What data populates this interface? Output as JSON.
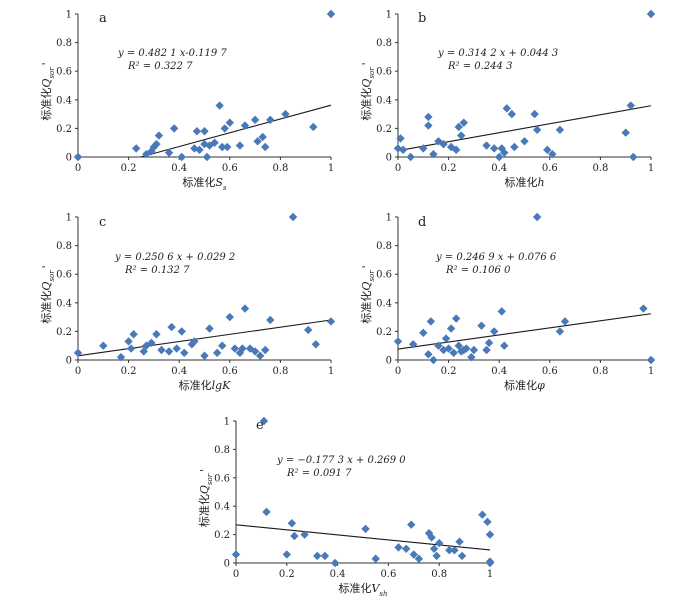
{
  "chart_data": [
    {
      "type": "scatter",
      "panel_label": "a",
      "xlabel": "标准化S_s",
      "ylabel": "标准化Q_sor'",
      "equation": "y = 0.482 1 x-0.119 7",
      "r2": "R² = 0.322 7",
      "xlim": [
        0,
        1
      ],
      "ylim": [
        0,
        1
      ],
      "xticks": [
        "0",
        "0.2",
        "0.4",
        "0.6",
        "0.8",
        "1"
      ],
      "yticks": [
        "0",
        "0.2",
        "0.4",
        "0.6",
        "0.8",
        "1"
      ],
      "trend": {
        "slope": 0.4821,
        "intercept": -0.1197
      },
      "x": [
        0,
        0.23,
        0.27,
        0.29,
        0.3,
        0.31,
        0.32,
        0.36,
        0.38,
        0.41,
        0.46,
        0.47,
        0.48,
        0.5,
        0.5,
        0.51,
        0.52,
        0.54,
        0.56,
        0.57,
        0.58,
        0.59,
        0.6,
        0.64,
        0.66,
        0.7,
        0.71,
        0.73,
        0.74,
        0.76,
        0.82,
        0.93,
        1.0
      ],
      "y": [
        0,
        0.06,
        0.02,
        0.04,
        0.07,
        0.09,
        0.15,
        0.03,
        0.2,
        0.0,
        0.06,
        0.18,
        0.05,
        0.09,
        0.18,
        0.0,
        0.08,
        0.1,
        0.36,
        0.07,
        0.2,
        0.07,
        0.24,
        0.08,
        0.22,
        0.26,
        0.11,
        0.14,
        0.07,
        0.26,
        0.3,
        0.21,
        1.0
      ]
    },
    {
      "type": "scatter",
      "panel_label": "b",
      "xlabel": "标准化h",
      "ylabel": "标准化Q_sor'",
      "equation": "y = 0.314 2 x + 0.044 3",
      "r2": "R² = 0.244 3",
      "xlim": [
        0,
        1
      ],
      "ylim": [
        0,
        1
      ],
      "xticks": [
        "0",
        "0.2",
        "0.4",
        "0.6",
        "0.8",
        "1"
      ],
      "yticks": [
        "0",
        "0.2",
        "0.4",
        "0.6",
        "0.8",
        "1"
      ],
      "trend": {
        "slope": 0.3142,
        "intercept": 0.0443
      },
      "x": [
        0,
        0.01,
        0.02,
        0.05,
        0.1,
        0.12,
        0.12,
        0.14,
        0.16,
        0.18,
        0.21,
        0.23,
        0.24,
        0.25,
        0.26,
        0.35,
        0.38,
        0.4,
        0.41,
        0.42,
        0.43,
        0.45,
        0.46,
        0.5,
        0.54,
        0.55,
        0.59,
        0.61,
        0.64,
        0.9,
        0.92,
        0.93,
        1.0
      ],
      "y": [
        0.06,
        0.13,
        0.05,
        0.0,
        0.06,
        0.28,
        0.22,
        0.02,
        0.11,
        0.09,
        0.07,
        0.05,
        0.21,
        0.15,
        0.24,
        0.08,
        0.06,
        0.0,
        0.06,
        0.03,
        0.34,
        0.3,
        0.07,
        0.11,
        0.3,
        0.19,
        0.05,
        0.02,
        0.19,
        0.17,
        0.36,
        0.0,
        1.0
      ]
    },
    {
      "type": "scatter",
      "panel_label": "c",
      "xlabel": "标准化lgK",
      "ylabel": "标准化Q_sor'",
      "equation": "y = 0.250 6 x + 0.029 2",
      "r2": "R² = 0.132 7",
      "xlim": [
        0,
        1
      ],
      "ylim": [
        0,
        1
      ],
      "xticks": [
        "0",
        "0.2",
        "0.4",
        "0.6",
        "0.8",
        "1"
      ],
      "yticks": [
        "0",
        "0.2",
        "0.4",
        "0.6",
        "0.8",
        "1"
      ],
      "trend": {
        "slope": 0.2506,
        "intercept": 0.0292
      },
      "x": [
        0,
        0.1,
        0.17,
        0.2,
        0.21,
        0.22,
        0.26,
        0.27,
        0.29,
        0.31,
        0.33,
        0.36,
        0.37,
        0.39,
        0.41,
        0.42,
        0.45,
        0.46,
        0.5,
        0.52,
        0.55,
        0.57,
        0.6,
        0.62,
        0.64,
        0.65,
        0.66,
        0.68,
        0.7,
        0.72,
        0.74,
        0.76,
        0.85,
        0.91,
        0.94,
        1.0
      ],
      "y": [
        0.05,
        0.1,
        0.02,
        0.13,
        0.08,
        0.18,
        0.06,
        0.1,
        0.12,
        0.18,
        0.07,
        0.06,
        0.23,
        0.08,
        0.2,
        0.05,
        0.11,
        0.13,
        0.03,
        0.22,
        0.05,
        0.1,
        0.3,
        0.08,
        0.05,
        0.08,
        0.36,
        0.08,
        0.06,
        0.03,
        0.07,
        0.28,
        1.0,
        0.21,
        0.11,
        0.27
      ]
    },
    {
      "type": "scatter",
      "panel_label": "d",
      "xlabel": "标准化φ",
      "ylabel": "标准化Q_sor'",
      "equation": "y = 0.246 9 x + 0.076 6",
      "r2": "R² = 0.106 0",
      "xlim": [
        0,
        1
      ],
      "ylim": [
        0,
        1
      ],
      "xticks": [
        "0",
        "0.2",
        "0.4",
        "0.6",
        "0.8",
        "1"
      ],
      "yticks": [
        "0",
        "0.2",
        "0.4",
        "0.6",
        "0.8",
        "1"
      ],
      "trend": {
        "slope": 0.2469,
        "intercept": 0.0766
      },
      "x": [
        0,
        0.06,
        0.1,
        0.12,
        0.13,
        0.14,
        0.16,
        0.18,
        0.19,
        0.2,
        0.21,
        0.22,
        0.23,
        0.24,
        0.25,
        0.26,
        0.27,
        0.29,
        0.3,
        0.33,
        0.35,
        0.36,
        0.38,
        0.41,
        0.42,
        0.55,
        0.64,
        0.66,
        0.97,
        1.0
      ],
      "y": [
        0.13,
        0.11,
        0.19,
        0.04,
        0.27,
        0.0,
        0.1,
        0.07,
        0.15,
        0.08,
        0.22,
        0.05,
        0.29,
        0.1,
        0.06,
        0.07,
        0.08,
        0.02,
        0.07,
        0.24,
        0.07,
        0.12,
        0.2,
        0.34,
        0.1,
        1.0,
        0.2,
        0.27,
        0.36,
        0.0
      ]
    },
    {
      "type": "scatter",
      "panel_label": "e",
      "xlabel": "标准化V_sh",
      "ylabel": "标准化Q_sor'",
      "equation": "y = −0.177 3 x + 0.269 0",
      "r2": "R² = 0.091 7",
      "xlim": [
        0,
        1
      ],
      "ylim": [
        0,
        1
      ],
      "xticks": [
        "0",
        "0.2",
        "0.4",
        "0.6",
        "0.8",
        "1"
      ],
      "yticks": [
        "0",
        "0.2",
        "0.4",
        "0.6",
        "0.8",
        "1"
      ],
      "trend": {
        "slope": -0.1773,
        "intercept": 0.269
      },
      "x": [
        0,
        0.11,
        0.12,
        0.2,
        0.22,
        0.23,
        0.27,
        0.32,
        0.35,
        0.39,
        0.51,
        0.55,
        0.64,
        0.67,
        0.69,
        0.7,
        0.72,
        0.76,
        0.77,
        0.78,
        0.79,
        0.8,
        0.84,
        0.86,
        0.88,
        0.89,
        0.97,
        0.99,
        1.0,
        1.0,
        1.0
      ],
      "y": [
        0.06,
        1.0,
        0.36,
        0.06,
        0.28,
        0.19,
        0.2,
        0.05,
        0.05,
        0.0,
        0.24,
        0.03,
        0.11,
        0.1,
        0.27,
        0.06,
        0.03,
        0.21,
        0.18,
        0.1,
        0.05,
        0.14,
        0.09,
        0.09,
        0.15,
        0.05,
        0.34,
        0.29,
        0.2,
        0.01,
        0.0
      ]
    }
  ]
}
